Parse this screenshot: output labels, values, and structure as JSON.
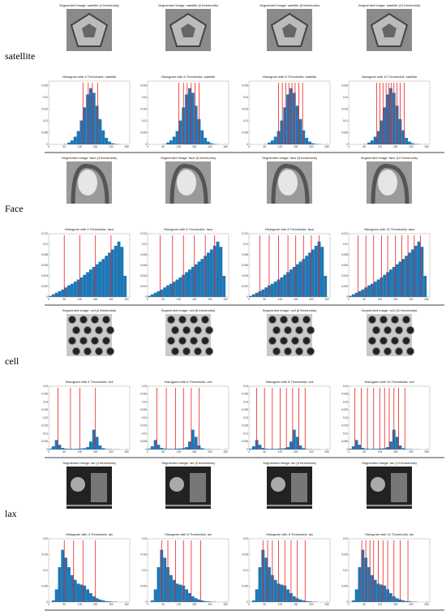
{
  "bins": [
    0,
    10,
    20,
    30,
    40,
    50,
    60,
    70,
    80,
    90,
    100,
    110,
    120,
    130,
    140,
    150,
    160,
    170,
    180,
    190,
    200,
    210,
    220,
    230,
    240,
    250,
    260
  ],
  "xlim": [
    0,
    260
  ],
  "xticks": [
    0,
    50,
    100,
    150,
    200,
    250
  ],
  "rows": [
    {
      "label": "satellite",
      "images": [
        {
          "title": "Segmented Image: satellite (4 thresholds)"
        },
        {
          "title": "Segmented Image: satellite (6 thresholds)"
        },
        {
          "title": "Segmented Image: satellite (8 thresholds)"
        },
        {
          "title": "Segmented Image: satellite (10 thresholds)"
        }
      ],
      "histograms": [
        {
          "title": "Histogram with 4 Thresholds: satellite",
          "thresholds": [
            110,
            127,
            140,
            157
          ]
        },
        {
          "title": "Histogram with 6 Thresholds: satellite",
          "thresholds": [
            100,
            115,
            127,
            140,
            152,
            165
          ]
        },
        {
          "title": "Histogram with 8 Thresholds: satellite",
          "thresholds": [
            95,
            107,
            118,
            128,
            138,
            148,
            160,
            172
          ]
        },
        {
          "title": "Histogram with 10 Thresholds: satellite",
          "thresholds": [
            90,
            100,
            110,
            120,
            128,
            136,
            145,
            155,
            165,
            178
          ]
        }
      ],
      "counts": [
        0,
        0,
        0,
        0,
        0,
        0.0001,
        0.0008,
        0.0017,
        0.0033,
        0.0057,
        0.0102,
        0.0158,
        0.0213,
        0.024,
        0.022,
        0.0165,
        0.0108,
        0.006,
        0.0028,
        0.0012,
        0.0005,
        0.0002,
        0.0001,
        0,
        0,
        0
      ],
      "ylim": [
        0,
        0.027
      ],
      "yticks": [
        0,
        0.005,
        0.01,
        0.015,
        0.02,
        0.025
      ]
    },
    {
      "label": "Face",
      "images": [
        {
          "title": "Segmented Image: face (4 thresholds)"
        },
        {
          "title": "Segmented Image: face (6 thresholds)"
        },
        {
          "title": "Segmented Image: face (8 thresholds)"
        },
        {
          "title": "Segmented Image: face (10 thresholds)"
        }
      ],
      "histograms": [
        {
          "title": "Histogram with 4 Thresholds: face",
          "thresholds": [
            50,
            100,
            150,
            200
          ]
        },
        {
          "title": "Histogram with 6 Thresholds: face",
          "thresholds": [
            40,
            80,
            115,
            150,
            185,
            215
          ]
        },
        {
          "title": "Histogram with 8 Thresholds: face",
          "thresholds": [
            35,
            65,
            95,
            125,
            150,
            175,
            200,
            225
          ]
        },
        {
          "title": "Histogram with 10 Thresholds: face",
          "thresholds": [
            30,
            55,
            80,
            105,
            125,
            150,
            170,
            190,
            210,
            230
          ]
        }
      ],
      "counts": [
        0.0002,
        0.0005,
        0.0008,
        0.0011,
        0.0014,
        0.0018,
        0.0022,
        0.0025,
        0.0029,
        0.0033,
        0.0037,
        0.0042,
        0.0047,
        0.0052,
        0.0057,
        0.0062,
        0.0067,
        0.0072,
        0.0078,
        0.0084,
        0.009,
        0.0097,
        0.0105,
        0.0095,
        0.004,
        0
      ],
      "ylim": [
        0,
        0.012
      ],
      "yticks": [
        0,
        0.002,
        0.004,
        0.006,
        0.008,
        0.01,
        0.012
      ]
    },
    {
      "label": "cell",
      "images": [
        {
          "title": "Segmented Image: cell (4 thresholds)"
        },
        {
          "title": "Segmented Image: cell (6 thresholds)"
        },
        {
          "title": "Segmented Image: cell (8 thresholds)"
        },
        {
          "title": "Segmented Image: cell (10 thresholds)"
        }
      ],
      "histograms": [
        {
          "title": "Histogram with 4 Thresholds: cell",
          "thresholds": [
            30,
            70,
            100,
            150
          ]
        },
        {
          "title": "Histogram with 6 Thresholds: cell",
          "thresholds": [
            30,
            60,
            90,
            115,
            140,
            165
          ]
        },
        {
          "title": "Histogram with 8 Thresholds: cell",
          "thresholds": [
            25,
            50,
            75,
            100,
            120,
            140,
            160,
            180
          ]
        },
        {
          "title": "Histogram with 10 Thresholds: cell",
          "thresholds": [
            20,
            40,
            60,
            80,
            100,
            115,
            130,
            145,
            160,
            180
          ]
        }
      ],
      "counts": [
        0.0005,
        0.002,
        0.006,
        0.003,
        0.001,
        0.0005,
        0.0004,
        0.0004,
        0.0004,
        0.0005,
        0.0006,
        0.0008,
        0.0015,
        0.005,
        0.0125,
        0.008,
        0.0025,
        0.0008,
        0.0003,
        0.0002,
        0.0001,
        0.0001,
        0.0001,
        0,
        0,
        0
      ],
      "ylim": [
        0,
        0.04
      ],
      "yticks": [
        0,
        0.005,
        0.01,
        0.015,
        0.02,
        0.025,
        0.03,
        0.035,
        0.04
      ]
    },
    {
      "label": "lax",
      "images": [
        {
          "title": "Segmented Image: lax (4 thresholds)"
        },
        {
          "title": "Segmented Image: lax (6 thresholds)"
        },
        {
          "title": "Segmented Image: lax (8 thresholds)"
        },
        {
          "title": "Segmented Image: lax (10 thresholds)"
        }
      ],
      "histograms": [
        {
          "title": "Histogram with 4 Thresholds: lax",
          "thresholds": [
            50,
            80,
            110,
            150
          ]
        },
        {
          "title": "Histogram with 6 Thresholds: lax",
          "thresholds": [
            45,
            65,
            90,
            115,
            140,
            170
          ]
        },
        {
          "title": "Histogram with 8 Thresholds: lax",
          "thresholds": [
            45,
            60,
            75,
            95,
            115,
            135,
            155,
            180
          ]
        },
        {
          "title": "Histogram with 10 Thresholds: lax",
          "thresholds": [
            42,
            55,
            68,
            80,
            95,
            110,
            125,
            145,
            165,
            190
          ]
        }
      ],
      "counts": [
        0,
        0.0005,
        0.004,
        0.011,
        0.0165,
        0.014,
        0.011,
        0.0085,
        0.007,
        0.0058,
        0.0055,
        0.0052,
        0.004,
        0.0028,
        0.0018,
        0.0012,
        0.0008,
        0.0005,
        0.0003,
        0.0002,
        0.0001,
        0.0001,
        0,
        0,
        0,
        0
      ],
      "ylim": [
        0,
        0.02
      ],
      "yticks": [
        0,
        0.005,
        0.01,
        0.015,
        0.02
      ]
    }
  ]
}
